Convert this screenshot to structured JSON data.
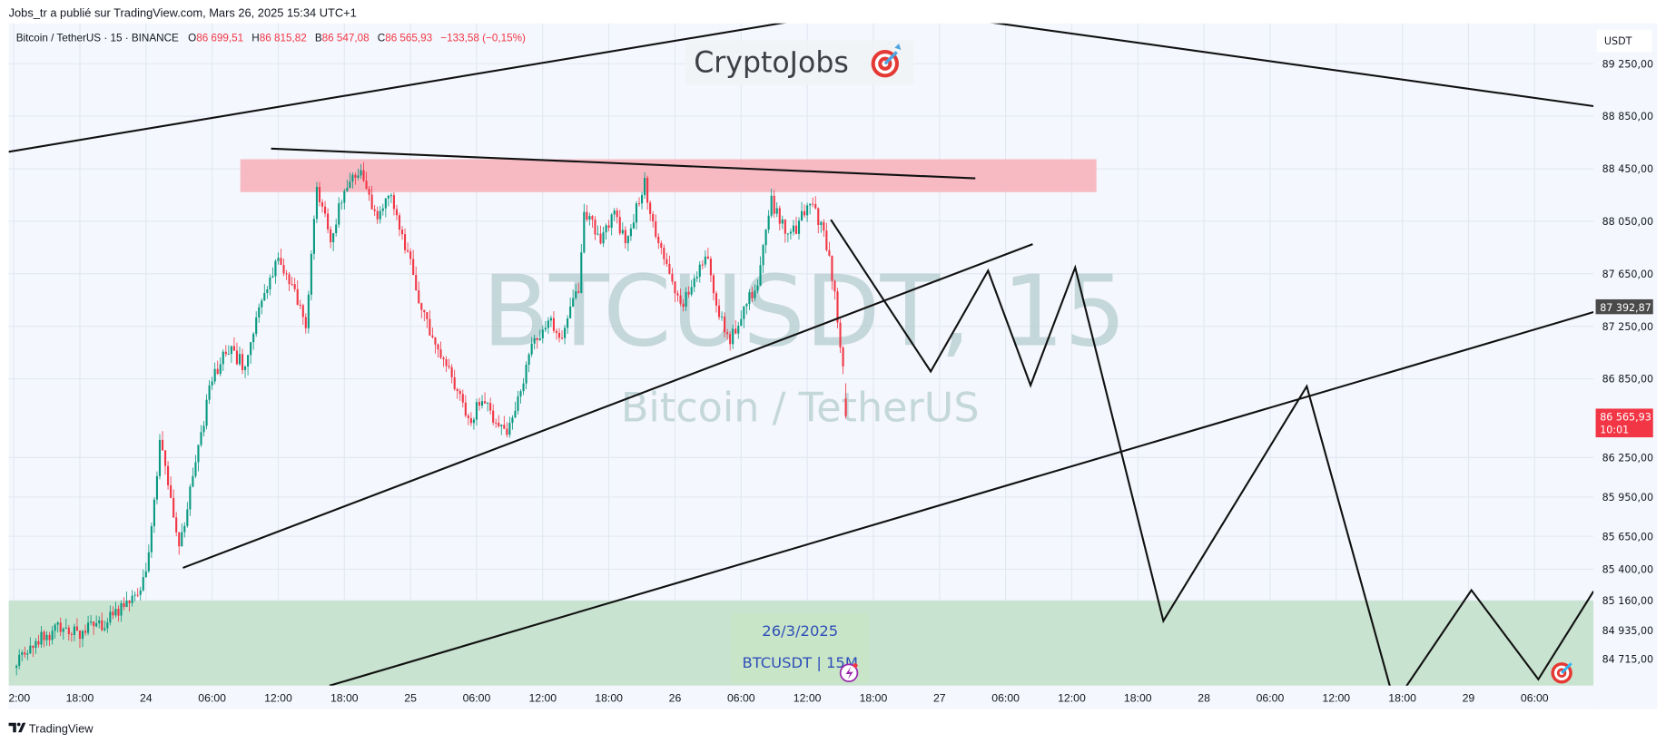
{
  "header": {
    "published": "Jobs_tr a publié sur TradingView.com, Mars 26, 2025 15:34 UTC+1"
  },
  "legend": {
    "symbol": "Bitcoin / TetherUS · 15 · BINANCE",
    "o_label": "O",
    "o_value": "86 699,51",
    "h_label": "H",
    "h_value": "86 815,82",
    "l_label": "B",
    "l_value": "86 547,08",
    "c_label": "C",
    "c_value": "86 565,93",
    "change": "−133,58 (−0,15%)"
  },
  "logo": {
    "text": "CryptoJobs",
    "icon": "target-dart-icon"
  },
  "watermark": {
    "line1": "BTCUSDT, 15",
    "line2": "Bitcoin / TetherUS"
  },
  "annotation_box": {
    "date": "26/3/2025",
    "label": "BTCUSDT | 15M"
  },
  "price_axis": {
    "currency": "USDT",
    "ticks": [
      "89 250,00",
      "88 850,00",
      "88 450,00",
      "88 050,00",
      "87 650,00",
      "87 250,00",
      "86 850,00",
      "86 250,00",
      "85 950,00",
      "85 650,00",
      "85 400,00",
      "85 160,00",
      "84 935,00",
      "84 715,00"
    ],
    "line_label": "87 392,87",
    "last_price": "86 565,93",
    "countdown": "10:01"
  },
  "time_axis": {
    "ticks": [
      "2:00",
      "18:00",
      "24",
      "06:00",
      "12:00",
      "18:00",
      "25",
      "06:00",
      "12:00",
      "18:00",
      "26",
      "06:00",
      "12:00",
      "18:00",
      "27",
      "06:00",
      "12:00",
      "18:00",
      "28",
      "06:00",
      "12:00",
      "18:00",
      "29",
      "06:00"
    ]
  },
  "footer": {
    "brand": "TradingView"
  },
  "colors": {
    "up": "#089981",
    "down": "#f23645",
    "resistance_zone": "#f7b6c0",
    "support_zone": "#c8e3cf",
    "background": "#f4f7fd",
    "accent": "#2f4fb8"
  },
  "chart_data": {
    "type": "candlestick",
    "symbol": "BTCUSDT",
    "interval": "15",
    "exchange": "BINANCE",
    "ylim": [
      84560,
      89350
    ],
    "grid": true,
    "last_candle": {
      "open": 86699.51,
      "high": 86815.82,
      "low": 86547.08,
      "close": 86565.93
    },
    "price_path": [
      [
        "2025-03-23T12:00",
        84650
      ],
      [
        "2025-03-23T14:30",
        84885
      ],
      [
        "2025-03-23T16:30",
        84965
      ],
      [
        "2025-03-23T18:00",
        84925
      ],
      [
        "2025-03-23T20:30",
        85000
      ],
      [
        "2025-03-23T23:00",
        85210
      ],
      [
        "2025-03-24T00:00",
        85370
      ],
      [
        "2025-03-24T01:15",
        86340
      ],
      [
        "2025-03-24T01:45",
        86180
      ],
      [
        "2025-03-24T03:00",
        85570
      ],
      [
        "2025-03-24T04:30",
        86180
      ],
      [
        "2025-03-24T06:00",
        86865
      ],
      [
        "2025-03-24T07:30",
        87070
      ],
      [
        "2025-03-24T09:00",
        86950
      ],
      [
        "2025-03-24T10:30",
        87430
      ],
      [
        "2025-03-24T12:00",
        87755
      ],
      [
        "2025-03-24T13:15",
        87550
      ],
      [
        "2025-03-24T14:30",
        87270
      ],
      [
        "2025-03-24T15:30",
        88320
      ],
      [
        "2025-03-24T16:45",
        87880
      ],
      [
        "2025-03-24T18:00",
        88320
      ],
      [
        "2025-03-24T19:30",
        88440
      ],
      [
        "2025-03-24T20:45",
        88080
      ],
      [
        "2025-03-24T22:00",
        88280
      ],
      [
        "2025-03-25T00:00",
        87710
      ],
      [
        "2025-03-25T00:45",
        87390
      ],
      [
        "2025-03-25T02:15",
        87150
      ],
      [
        "2025-03-25T03:45",
        86865
      ],
      [
        "2025-03-25T05:15",
        86500
      ],
      [
        "2025-03-25T06:30",
        86700
      ],
      [
        "2025-03-25T07:30",
        86540
      ],
      [
        "2025-03-25T08:45",
        86420
      ],
      [
        "2025-03-25T10:00",
        86745
      ],
      [
        "2025-03-25T11:00",
        87070
      ],
      [
        "2025-03-25T12:30",
        87310
      ],
      [
        "2025-03-25T13:45",
        87150
      ],
      [
        "2025-03-25T15:15",
        87550
      ],
      [
        "2025-03-25T15:45",
        88120
      ],
      [
        "2025-03-25T17:15",
        87920
      ],
      [
        "2025-03-25T18:30",
        88120
      ],
      [
        "2025-03-25T19:30",
        87880
      ],
      [
        "2025-03-25T21:15",
        88360
      ],
      [
        "2025-03-25T21:45",
        88080
      ],
      [
        "2025-03-25T23:00",
        87755
      ],
      [
        "2025-03-26T00:30",
        87390
      ],
      [
        "2025-03-26T02:00",
        87630
      ],
      [
        "2025-03-26T03:00",
        87795
      ],
      [
        "2025-03-26T03:45",
        87390
      ],
      [
        "2025-03-26T05:00",
        87150
      ],
      [
        "2025-03-26T06:15",
        87390
      ],
      [
        "2025-03-26T07:30",
        87590
      ],
      [
        "2025-03-26T08:45",
        88200
      ],
      [
        "2025-03-26T10:00",
        88000
      ],
      [
        "2025-03-26T11:00",
        88000
      ],
      [
        "2025-03-26T12:15",
        88200
      ],
      [
        "2025-03-26T13:15",
        88000
      ],
      [
        "2025-03-26T14:00",
        87800
      ],
      [
        "2025-03-26T14:45",
        87310
      ],
      [
        "2025-03-26T15:15",
        86905
      ],
      [
        "2025-03-26T15:30",
        86566
      ]
    ]
  }
}
